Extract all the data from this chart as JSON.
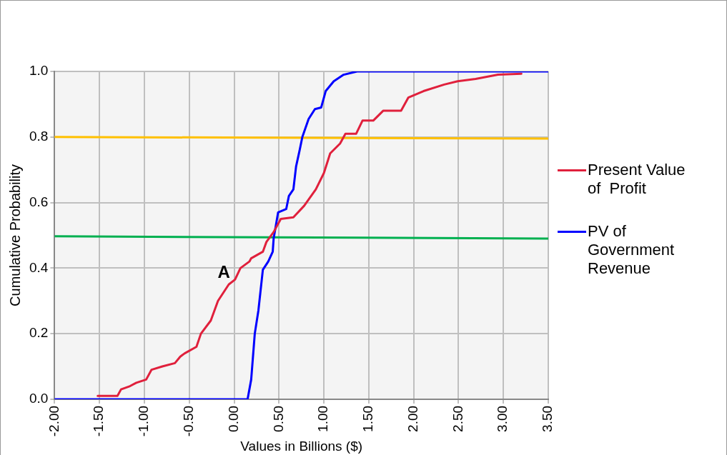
{
  "chart_data": {
    "type": "line",
    "xlabel": "Values in Billions ($)",
    "ylabel": "Cumulative Probability",
    "xlim": [
      -2,
      3.5
    ],
    "xticks": [
      {
        "value": -2,
        "label": "-2.00"
      },
      {
        "value": -1.5,
        "label": "-1.50"
      },
      {
        "value": -1,
        "label": "-1.00"
      },
      {
        "value": -0.5,
        "label": "-0.50"
      },
      {
        "value": 0,
        "label": "0.00"
      },
      {
        "value": 0.5,
        "label": "0.50"
      },
      {
        "value": 1,
        "label": "1.00"
      },
      {
        "value": 1.5,
        "label": "1.50"
      },
      {
        "value": 2,
        "label": "2.00"
      },
      {
        "value": 2.5,
        "label": "2.50"
      },
      {
        "value": 3,
        "label": "3.00"
      },
      {
        "value": 3.5,
        "label": "3.50"
      }
    ],
    "ylim": [
      0,
      1
    ],
    "yticks": [
      {
        "value": 0,
        "label": "0.0"
      },
      {
        "value": 0.2,
        "label": "0.2"
      },
      {
        "value": 0.4,
        "label": "0.4"
      },
      {
        "value": 0.6,
        "label": "0.6"
      },
      {
        "value": 0.8,
        "label": "0.8"
      },
      {
        "value": 1,
        "label": "1.0"
      }
    ],
    "grid": true,
    "legend": "right",
    "marker": "none",
    "line_style": "solid",
    "annotations": [
      "A"
    ],
    "series": [
      {
        "name": "Present Value of  Profit",
        "color": "#e0203c",
        "x": [
          -1.52,
          -1.3,
          -1.26,
          -1.16,
          -1.09,
          -0.98,
          -0.92,
          -0.8,
          -0.66,
          -0.6,
          -0.55,
          -0.42,
          -0.37,
          -0.26,
          -0.18,
          -0.06,
          0.01,
          0.07,
          0.17,
          0.19,
          0.32,
          0.36,
          0.44,
          0.52,
          0.66,
          0.78,
          0.91,
          1.0,
          1.07,
          1.18,
          1.24,
          1.36,
          1.43,
          1.55,
          1.66,
          1.86,
          1.94,
          2.11,
          2.34,
          2.49,
          2.69,
          2.94,
          3.2
        ],
        "values": [
          0.01,
          0.01,
          0.03,
          0.04,
          0.05,
          0.06,
          0.09,
          0.1,
          0.11,
          0.13,
          0.14,
          0.16,
          0.2,
          0.24,
          0.3,
          0.35,
          0.365,
          0.4,
          0.42,
          0.43,
          0.45,
          0.48,
          0.51,
          0.55,
          0.555,
          0.59,
          0.64,
          0.69,
          0.75,
          0.78,
          0.81,
          0.81,
          0.85,
          0.85,
          0.88,
          0.88,
          0.92,
          0.94,
          0.96,
          0.97,
          0.977,
          0.99,
          0.993
        ]
      },
      {
        "name": "PV of Government Revenue",
        "color": "#0000ff",
        "x": [
          -2,
          0.15,
          0.19,
          0.23,
          0.27,
          0.32,
          0.38,
          0.43,
          0.44,
          0.49,
          0.58,
          0.61,
          0.66,
          0.69,
          0.73,
          0.76,
          0.83,
          0.9,
          0.97,
          1.02,
          1.11,
          1.22,
          1.37,
          3.5
        ],
        "values": [
          0,
          0,
          0.06,
          0.2,
          0.27,
          0.395,
          0.42,
          0.45,
          0.49,
          0.57,
          0.58,
          0.62,
          0.64,
          0.71,
          0.76,
          0.8,
          0.855,
          0.885,
          0.89,
          0.94,
          0.97,
          0.99,
          1,
          1
        ]
      },
      {
        "color": "#ffc000",
        "x": [
          -2,
          3.5
        ],
        "values": [
          0.8,
          0.795
        ]
      },
      {
        "color": "#00b050",
        "x": [
          -2,
          3.5
        ],
        "values": [
          0.497,
          0.49
        ]
      }
    ]
  }
}
